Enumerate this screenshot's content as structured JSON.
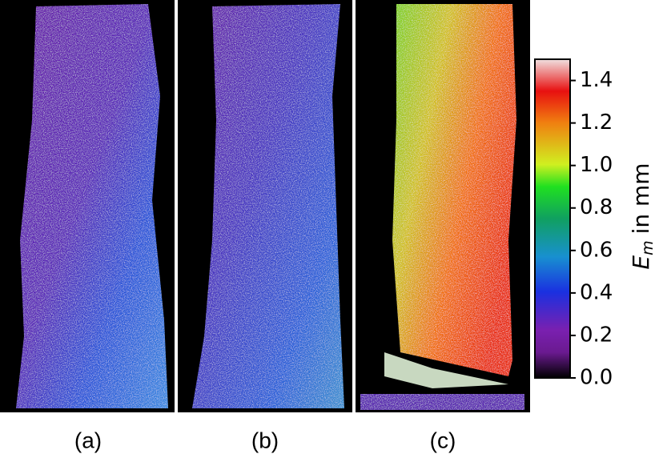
{
  "chart_data": {
    "type": "heatmap",
    "panels": [
      "(a)",
      "(b)",
      "(c)"
    ],
    "colorbar": {
      "label_symbol": "E",
      "label_subscript": "m",
      "label_text": "in mm",
      "ylim": [
        0,
        1.5
      ],
      "yticks": [
        {
          "value": 0,
          "label": "0.0"
        },
        0.2,
        0.4,
        0.6,
        0.8,
        {
          "value": 1,
          "label": "1.0"
        },
        1.2,
        1.4
      ]
    }
  }
}
